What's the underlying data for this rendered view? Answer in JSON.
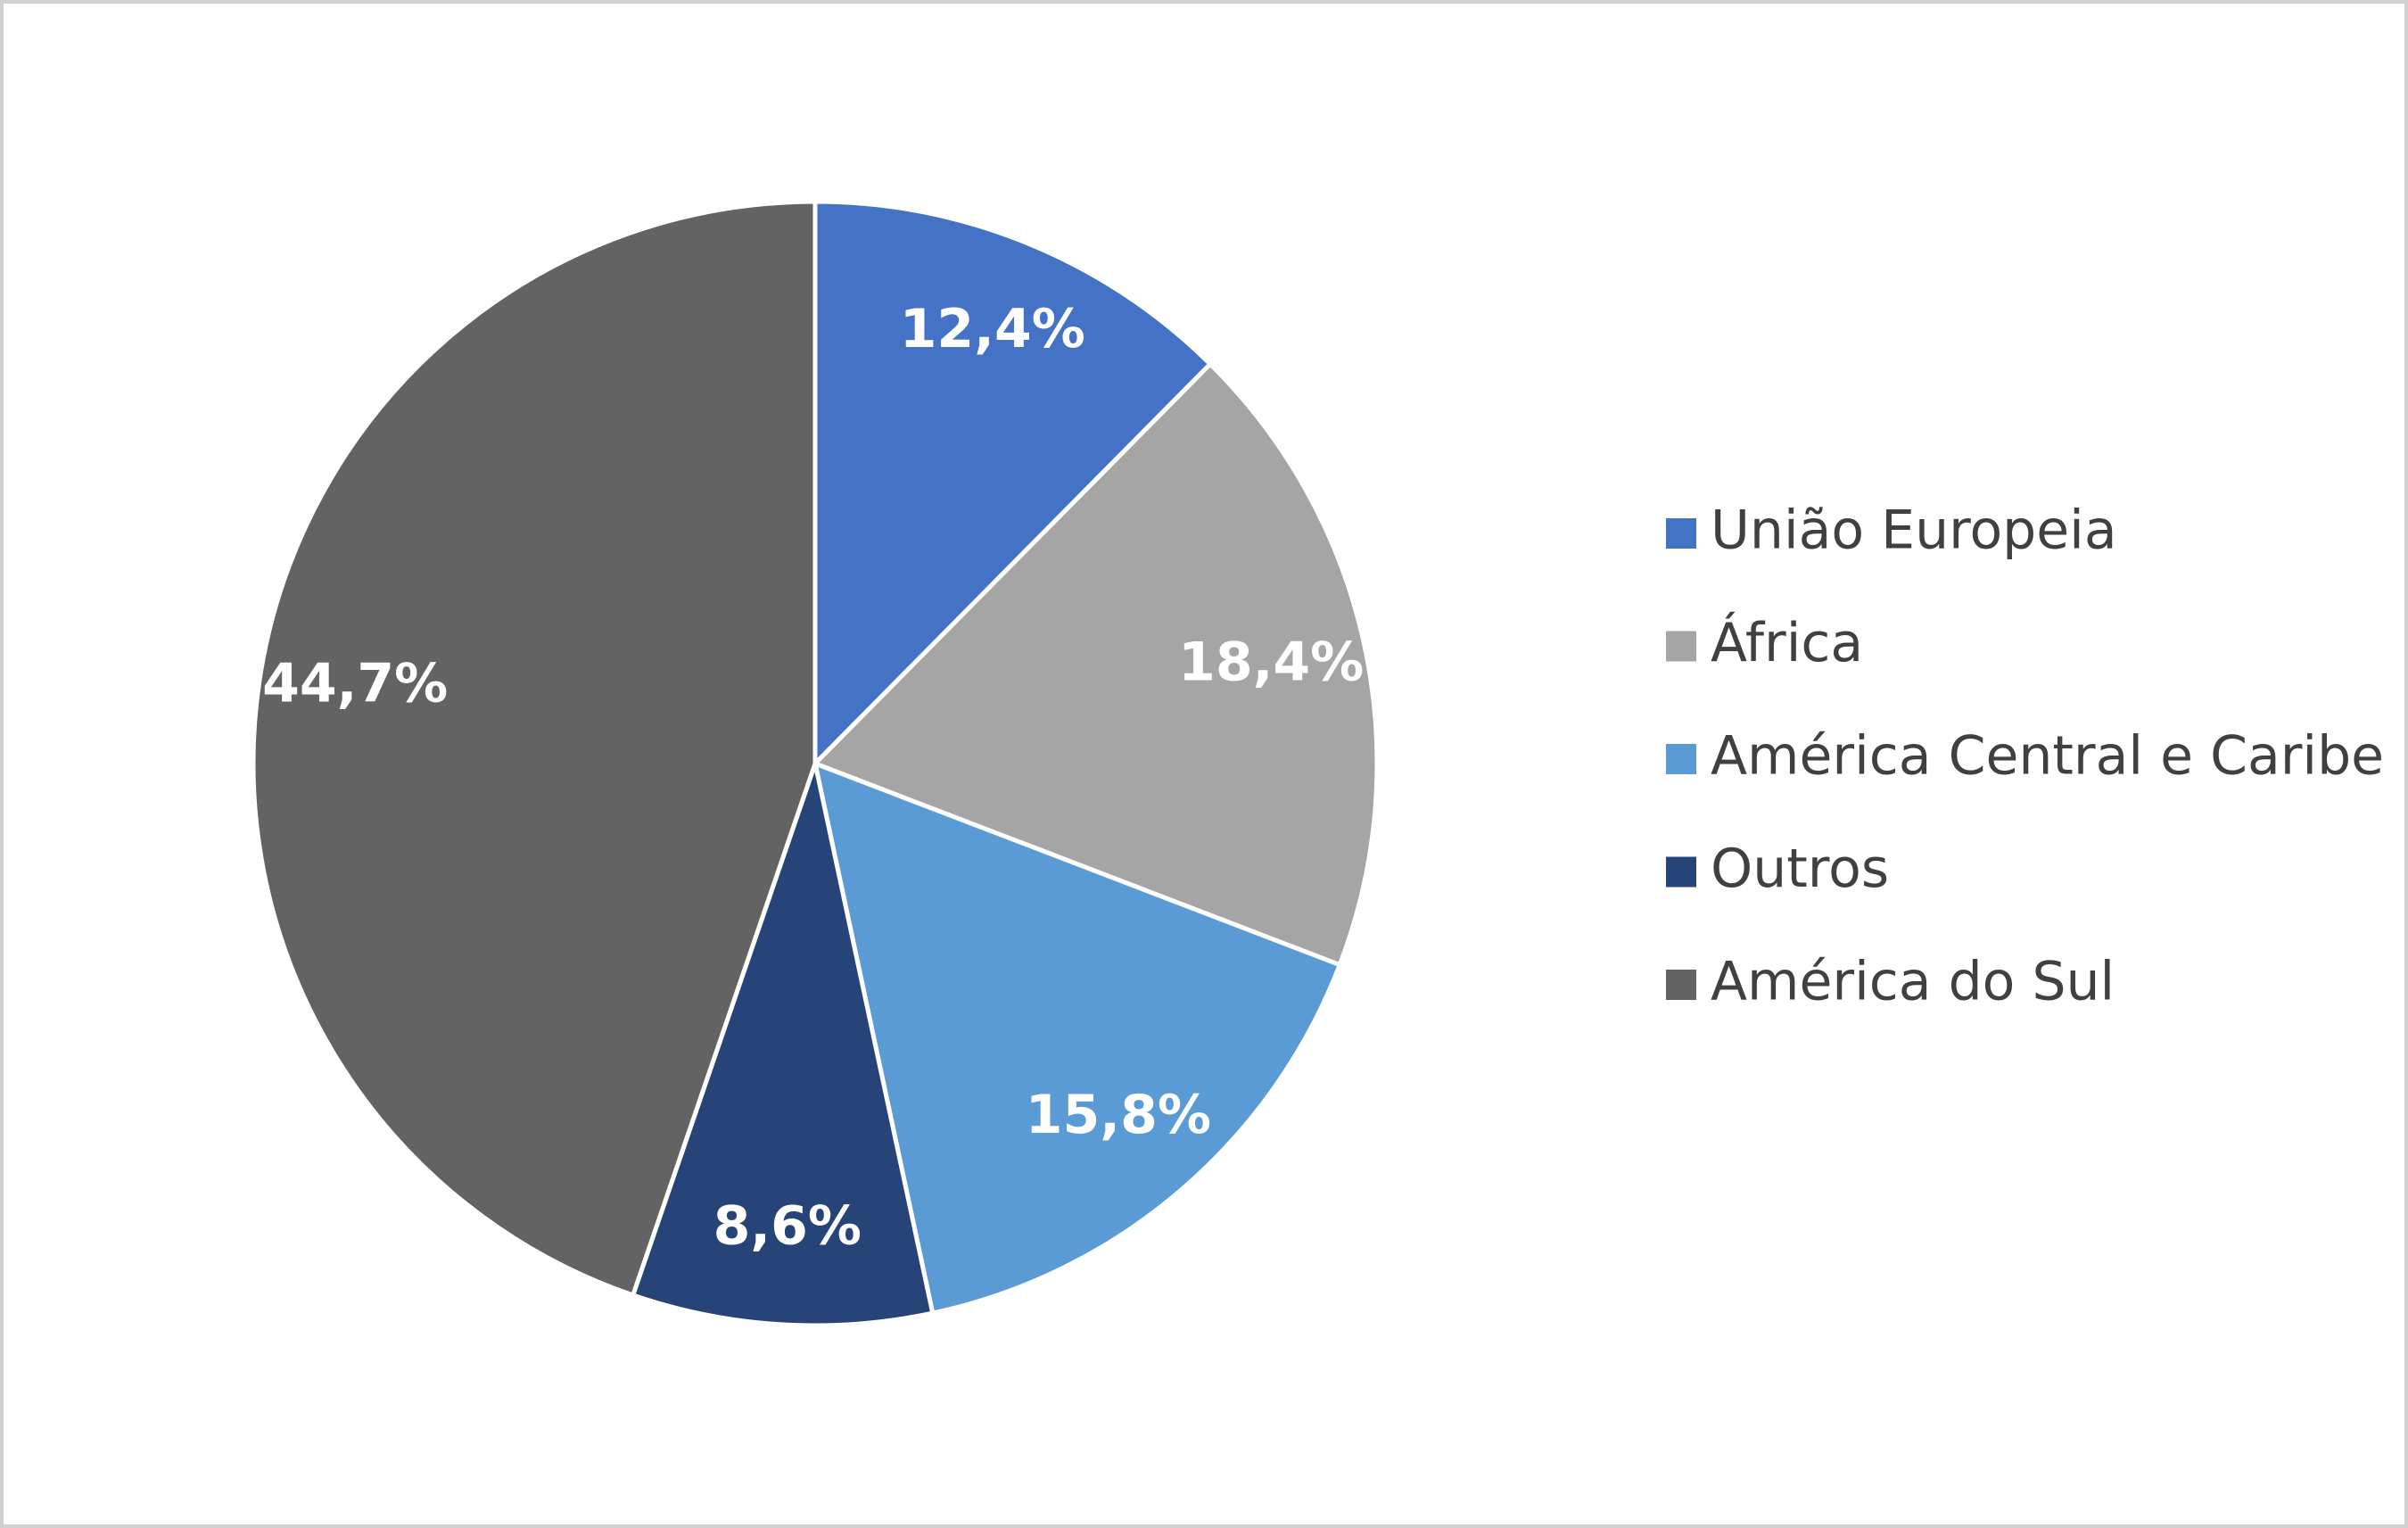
{
  "chart_data": {
    "type": "pie",
    "categories": [
      "União Europeia",
      "África",
      "América Central e Caribe",
      "Outros",
      "América do Sul"
    ],
    "values": [
      12.4,
      18.4,
      15.8,
      8.6,
      44.7
    ],
    "value_labels": [
      "12,4%",
      "18,4%",
      "15,8%",
      "8,6%",
      "44,7%"
    ],
    "colors": [
      "#4472c4",
      "#a5a5a5",
      "#5b9bd5",
      "#264478",
      "#636363"
    ],
    "legend": "right"
  }
}
